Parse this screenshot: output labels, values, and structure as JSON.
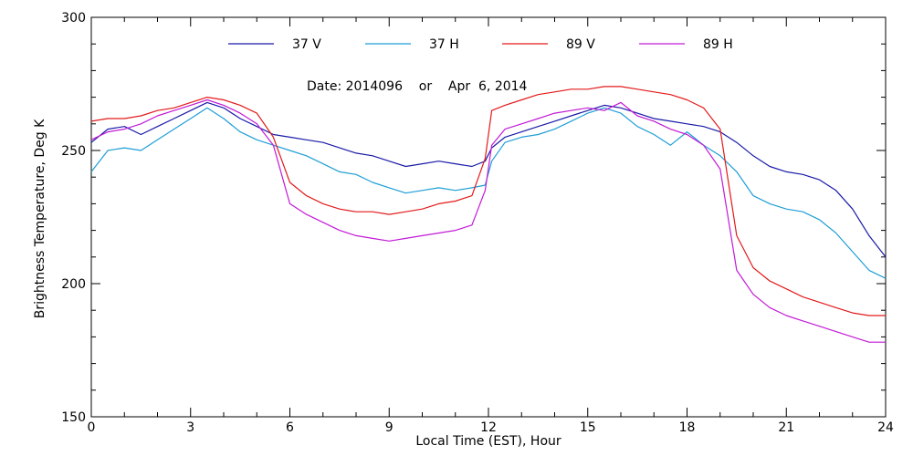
{
  "chart_data": {
    "type": "line",
    "xlabel": "Local Time (EST), Hour",
    "ylabel": "Brightness Temperature, Deg K",
    "annotation": "Date: 2014096    or    Apr  6, 2014",
    "xlim": [
      0,
      24
    ],
    "ylim": [
      150,
      300
    ],
    "xticks": [
      0,
      3,
      6,
      9,
      12,
      15,
      18,
      21,
      24
    ],
    "yticks": [
      150,
      200,
      250,
      300
    ],
    "grid": false,
    "legend_position": "top",
    "series": [
      {
        "name": "37 V",
        "color": "#1a1aa8",
        "x": [
          0,
          0.5,
          1,
          1.5,
          2,
          2.5,
          3,
          3.5,
          4,
          4.5,
          5,
          5.5,
          6,
          6.5,
          7,
          7.5,
          8,
          8.5,
          9,
          9.5,
          10,
          10.5,
          11,
          11.5,
          11.9,
          12.1,
          12.5,
          13,
          13.5,
          14,
          14.5,
          15,
          15.5,
          16,
          16.5,
          17,
          17.5,
          18,
          18.5,
          19,
          19.5,
          20,
          20.5,
          21,
          21.5,
          22,
          22.5,
          23,
          23.5,
          24
        ],
        "values": [
          253,
          258,
          259,
          256,
          259,
          262,
          265,
          268,
          266,
          262,
          259,
          256,
          255,
          254,
          253,
          251,
          249,
          248,
          246,
          244,
          245,
          246,
          245,
          244,
          246,
          251,
          255,
          257,
          259,
          261,
          263,
          265,
          267,
          266,
          264,
          262,
          261,
          260,
          259,
          257,
          253,
          248,
          244,
          242,
          241,
          239,
          235,
          228,
          218,
          210
        ]
      },
      {
        "name": "37 H",
        "color": "#1f9ed6",
        "x": [
          0,
          0.5,
          1,
          1.5,
          2,
          2.5,
          3,
          3.5,
          4,
          4.5,
          5,
          5.5,
          6,
          6.5,
          7,
          7.5,
          8,
          8.5,
          9,
          9.5,
          10,
          10.5,
          11,
          11.5,
          11.9,
          12.1,
          12.5,
          13,
          13.5,
          14,
          14.5,
          15,
          15.5,
          16,
          16.5,
          17,
          17.5,
          18,
          18.5,
          19,
          19.5,
          20,
          20.5,
          21,
          21.5,
          22,
          22.5,
          23,
          23.5,
          24
        ],
        "values": [
          242,
          250,
          251,
          250,
          254,
          258,
          262,
          266,
          262,
          257,
          254,
          252,
          250,
          248,
          245,
          242,
          241,
          238,
          236,
          234,
          235,
          236,
          235,
          236,
          237,
          246,
          253,
          255,
          256,
          258,
          261,
          264,
          266,
          264,
          259,
          256,
          252,
          257,
          252,
          248,
          242,
          233,
          230,
          228,
          227,
          224,
          219,
          212,
          205,
          202
        ]
      },
      {
        "name": "89 V",
        "color": "#e31a1a",
        "x": [
          0,
          0.5,
          1,
          1.5,
          2,
          2.5,
          3,
          3.5,
          4,
          4.5,
          5,
          5.5,
          6,
          6.5,
          7,
          7.5,
          8,
          8.5,
          9,
          9.5,
          10,
          10.5,
          11,
          11.5,
          11.9,
          12.1,
          12.5,
          13,
          13.5,
          14,
          14.5,
          15,
          15.5,
          16,
          16.5,
          17,
          17.5,
          18,
          18.5,
          19,
          19.5,
          20,
          20.5,
          21,
          21.5,
          22,
          22.5,
          23,
          23.5,
          24
        ],
        "values": [
          261,
          262,
          262,
          263,
          265,
          266,
          268,
          270,
          269,
          267,
          264,
          255,
          238,
          233,
          230,
          228,
          227,
          227,
          226,
          227,
          228,
          230,
          231,
          233,
          247,
          265,
          267,
          269,
          271,
          272,
          273,
          273,
          274,
          274,
          273,
          272,
          271,
          269,
          266,
          258,
          218,
          206,
          201,
          198,
          195,
          193,
          191,
          189,
          188,
          188
        ]
      },
      {
        "name": "89 H",
        "color": "#c21ad6",
        "x": [
          0,
          0.5,
          1,
          1.5,
          2,
          2.5,
          3,
          3.5,
          4,
          4.5,
          5,
          5.5,
          6,
          6.5,
          7,
          7.5,
          8,
          8.5,
          9,
          9.5,
          10,
          10.5,
          11,
          11.5,
          11.9,
          12.1,
          12.5,
          13,
          13.5,
          14,
          14.5,
          15,
          15.5,
          16,
          16.5,
          17,
          17.5,
          18,
          18.5,
          19,
          19.5,
          20,
          20.5,
          21,
          21.5,
          22,
          22.5,
          23,
          23.5,
          24
        ],
        "values": [
          254,
          257,
          258,
          260,
          263,
          265,
          267,
          269,
          267,
          264,
          260,
          252,
          230,
          226,
          223,
          220,
          218,
          217,
          216,
          217,
          218,
          219,
          220,
          222,
          235,
          252,
          258,
          260,
          262,
          264,
          265,
          266,
          265,
          268,
          263,
          261,
          258,
          256,
          252,
          243,
          205,
          196,
          191,
          188,
          186,
          184,
          182,
          180,
          178,
          178
        ]
      }
    ]
  }
}
